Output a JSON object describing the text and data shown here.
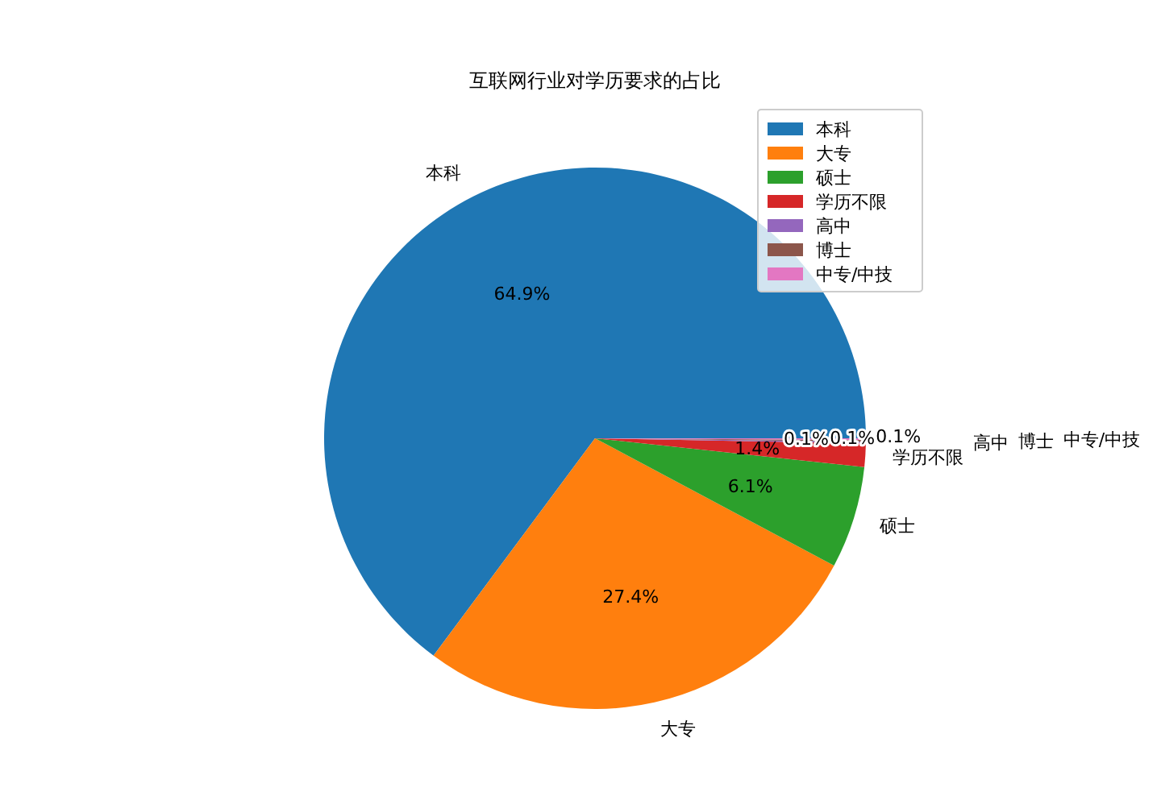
{
  "chart_data": {
    "type": "pie",
    "title": "互联网行业对学历要求的占比",
    "categories": [
      "本科",
      "大专",
      "硕士",
      "学历不限",
      "高中",
      "博士",
      "中专/中技"
    ],
    "values": [
      64.9,
      27.4,
      6.1,
      1.4,
      0.1,
      0.1,
      0.1
    ],
    "colors": [
      "#1f77b4",
      "#ff7f0e",
      "#2ca02c",
      "#d62728",
      "#9467bd",
      "#8c564b",
      "#e377c2"
    ],
    "value_labels": [
      "64.9%",
      "27.4%",
      "6.1%",
      "1.4%",
      "0.1%",
      "0.1%",
      "0.1%"
    ],
    "legend": "top right"
  }
}
